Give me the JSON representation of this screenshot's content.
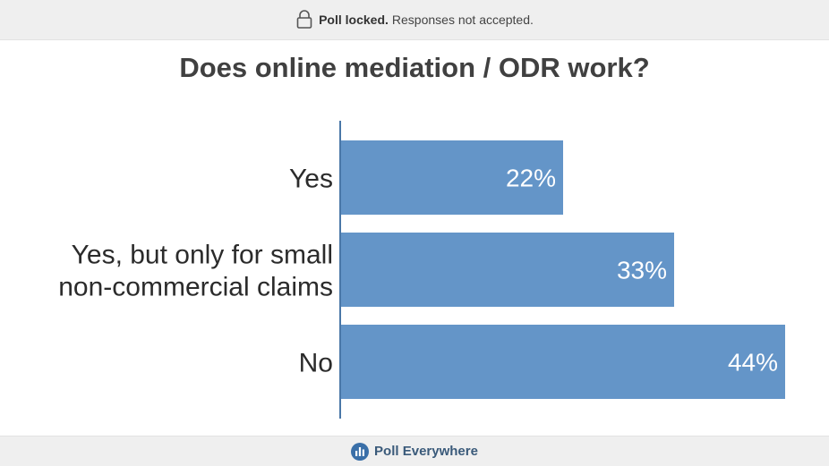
{
  "banner": {
    "strong": "Poll locked.",
    "rest": "Responses not accepted.",
    "icon": "lock-icon"
  },
  "footer": {
    "brand": "Poll Everywhere",
    "icon": "poll-everywhere-logo-icon"
  },
  "colors": {
    "bar": "#6495c8",
    "axis": "#4a77a8",
    "label_text": "#2b2b2b",
    "value_text": "#ffffff"
  },
  "chart_data": {
    "type": "bar",
    "orientation": "horizontal",
    "title": "Does online mediation / ODR work?",
    "categories": [
      [
        "Yes"
      ],
      [
        "Yes, but only for small",
        "non-commercial claims"
      ],
      [
        "No"
      ]
    ],
    "values": [
      22,
      33,
      44
    ],
    "value_labels": [
      "22%",
      "33%",
      "44%"
    ],
    "xlim": [
      0,
      44
    ],
    "grid": false,
    "legend": "none"
  }
}
